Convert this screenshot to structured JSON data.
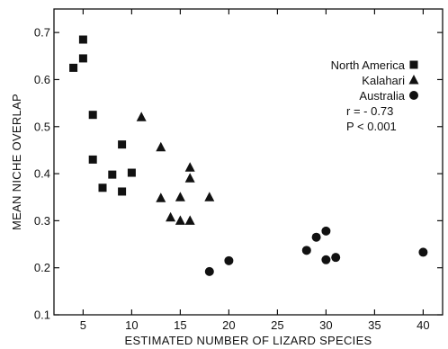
{
  "chart_data": {
    "type": "scatter",
    "title": "",
    "xlabel": "ESTIMATED NUMBER OF LIZARD SPECIES",
    "ylabel": "MEAN NICHE OVERLAP",
    "xlim": [
      2,
      42
    ],
    "ylim": [
      0.1,
      0.75
    ],
    "x_ticks": [
      5,
      10,
      15,
      20,
      25,
      30,
      35,
      40
    ],
    "y_ticks": [
      0.1,
      0.2,
      0.3,
      0.4,
      0.5,
      0.6,
      0.7
    ],
    "x_tick_labels": [
      "5",
      "10",
      "15",
      "20",
      "25",
      "30",
      "35",
      "40"
    ],
    "y_tick_labels": [
      "0.1",
      "0.2",
      "0.3",
      "0.4",
      "0.5",
      "0.6",
      "0.7"
    ],
    "grid": false,
    "legend_position": "top-right",
    "series": [
      {
        "name": "North America",
        "marker": "square",
        "points": [
          [
            4,
            0.625
          ],
          [
            5,
            0.685
          ],
          [
            5,
            0.645
          ],
          [
            6,
            0.525
          ],
          [
            6,
            0.43
          ],
          [
            7,
            0.37
          ],
          [
            8,
            0.398
          ],
          [
            9,
            0.462
          ],
          [
            9,
            0.362
          ],
          [
            10,
            0.402
          ]
        ]
      },
      {
        "name": "Kalahari",
        "marker": "triangle",
        "points": [
          [
            11,
            0.52
          ],
          [
            13,
            0.456
          ],
          [
            13,
            0.348
          ],
          [
            14,
            0.307
          ],
          [
            15,
            0.35
          ],
          [
            15,
            0.3
          ],
          [
            16,
            0.413
          ],
          [
            16,
            0.39
          ],
          [
            16,
            0.3
          ],
          [
            18,
            0.35
          ]
        ]
      },
      {
        "name": "Australia",
        "marker": "circle",
        "points": [
          [
            18,
            0.192
          ],
          [
            20,
            0.215
          ],
          [
            28,
            0.237
          ],
          [
            29,
            0.265
          ],
          [
            30,
            0.278
          ],
          [
            30,
            0.217
          ],
          [
            31,
            0.222
          ],
          [
            40,
            0.233
          ]
        ]
      }
    ],
    "annotations": [
      "r = - 0.73",
      "P < 0.001"
    ],
    "colors": {
      "marker": "#111111",
      "axis": "#111111"
    }
  }
}
